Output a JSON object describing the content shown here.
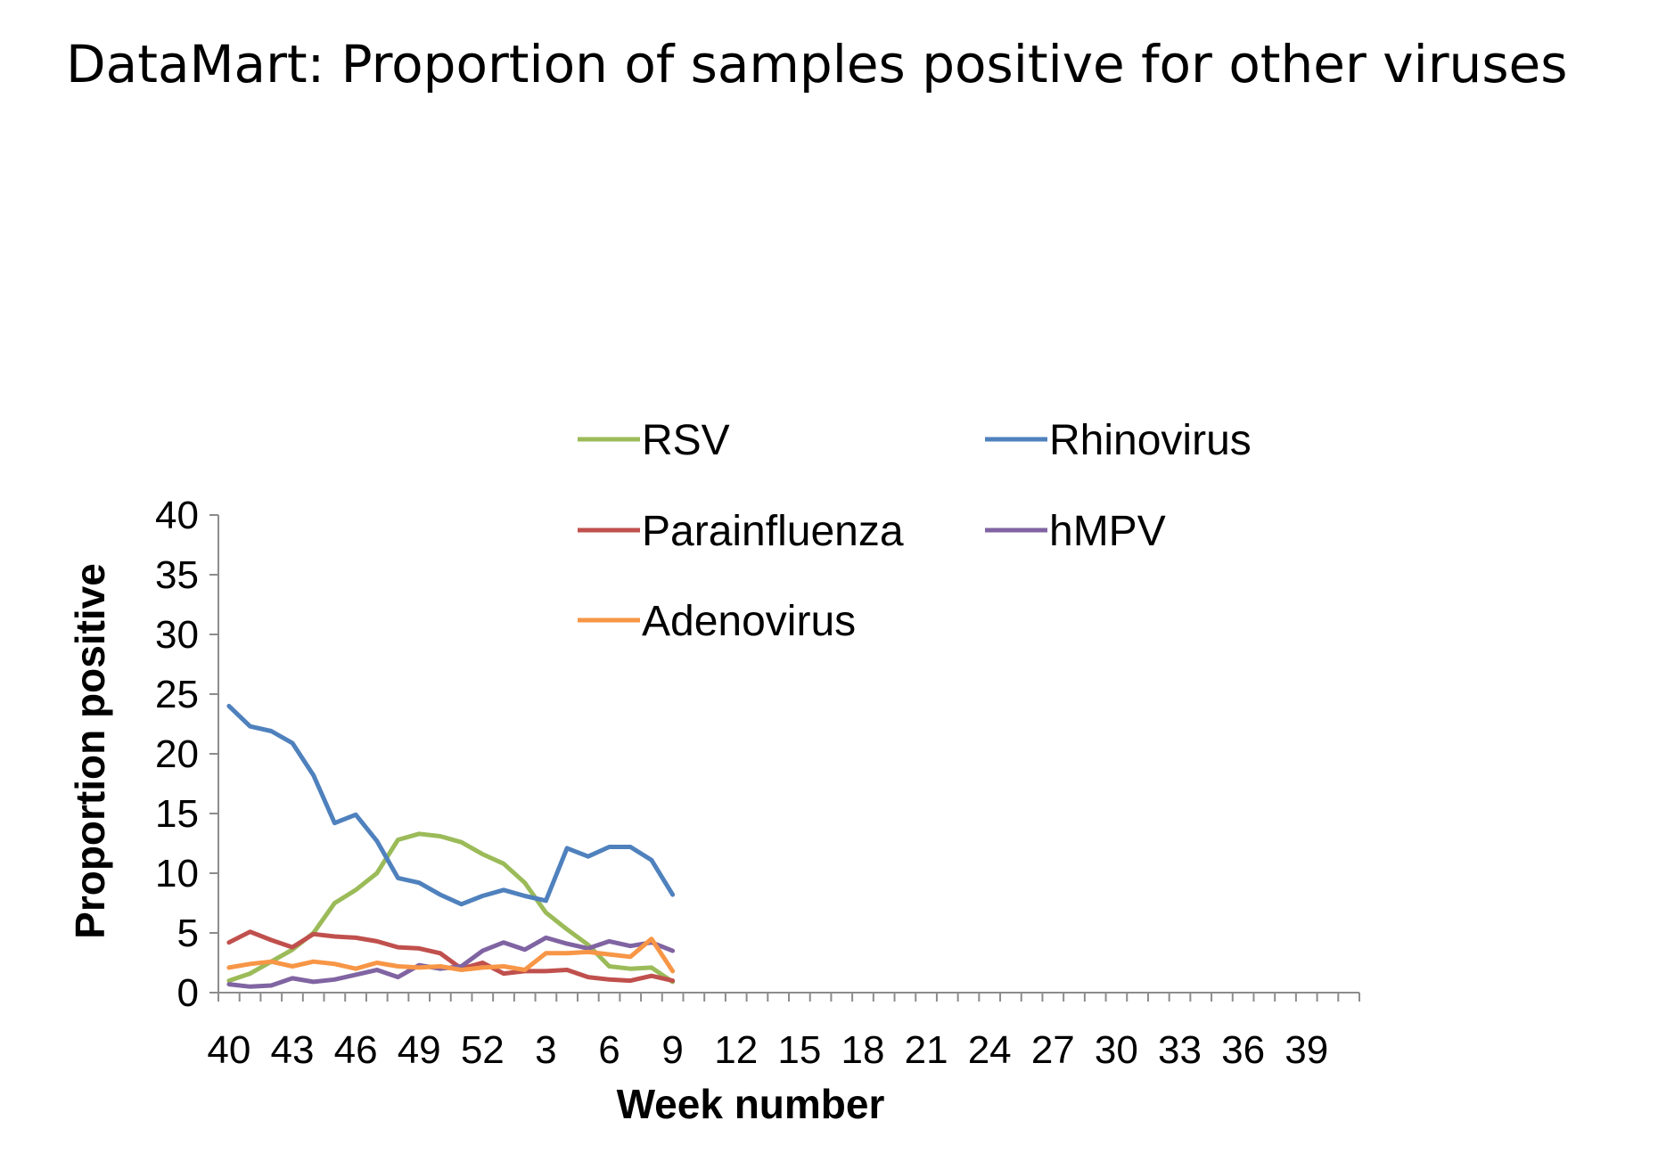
{
  "page": {
    "title": "DataMart: Proportion of samples positive for other viruses"
  },
  "chart_data": {
    "type": "line",
    "title": "DataMart: Proportion of samples positive for other viruses",
    "xlabel": "Week number",
    "ylabel": "Proportion positive",
    "ylim": [
      0,
      40
    ],
    "yticks": [
      0,
      5,
      10,
      15,
      20,
      25,
      30,
      35,
      40
    ],
    "xtick_labels": [
      "40",
      "43",
      "46",
      "49",
      "52",
      "3",
      "6",
      "9",
      "12",
      "15",
      "18",
      "21",
      "24",
      "27",
      "30",
      "33",
      "36",
      "39"
    ],
    "x": [
      "40",
      "41",
      "42",
      "43",
      "44",
      "45",
      "46",
      "47",
      "48",
      "49",
      "50",
      "51",
      "52",
      "1",
      "2",
      "3",
      "4",
      "5",
      "6",
      "7",
      "8",
      "9"
    ],
    "legend": {
      "position": "top-right",
      "columns": 2
    },
    "series": [
      {
        "name": "RSV",
        "color": "#9bbb59",
        "values": [
          1.0,
          1.6,
          2.6,
          3.6,
          5.0,
          7.5,
          8.6,
          10.0,
          12.8,
          13.3,
          13.1,
          12.6,
          11.6,
          10.8,
          9.2,
          6.7,
          5.3,
          4.0,
          2.2,
          2.0,
          2.1,
          0.9
        ]
      },
      {
        "name": "Rhinovirus",
        "color": "#4f81bd",
        "values": [
          24.0,
          22.3,
          21.9,
          20.9,
          18.2,
          14.2,
          14.9,
          12.7,
          9.6,
          9.2,
          8.2,
          7.4,
          8.1,
          8.6,
          8.1,
          7.7,
          12.1,
          11.4,
          12.2,
          12.2,
          11.1,
          8.2
        ]
      },
      {
        "name": "Parainfluenza",
        "color": "#c0504d",
        "values": [
          4.2,
          5.1,
          4.4,
          3.8,
          4.9,
          4.7,
          4.6,
          4.3,
          3.8,
          3.7,
          3.3,
          2.0,
          2.5,
          1.6,
          1.8,
          1.8,
          1.9,
          1.3,
          1.1,
          1.0,
          1.4,
          1.0
        ]
      },
      {
        "name": "hMPV",
        "color": "#8064a2",
        "values": [
          0.7,
          0.5,
          0.6,
          1.2,
          0.9,
          1.1,
          1.5,
          1.9,
          1.3,
          2.3,
          2.0,
          2.2,
          3.5,
          4.2,
          3.6,
          4.6,
          4.1,
          3.7,
          4.3,
          3.9,
          4.2,
          3.5
        ]
      },
      {
        "name": "Adenovirus",
        "color": "#f79646",
        "values": [
          2.1,
          2.4,
          2.6,
          2.2,
          2.6,
          2.4,
          2.0,
          2.5,
          2.2,
          2.1,
          2.2,
          1.9,
          2.1,
          2.2,
          1.9,
          3.3,
          3.3,
          3.4,
          3.2,
          3.0,
          4.5,
          1.8
        ]
      }
    ]
  }
}
